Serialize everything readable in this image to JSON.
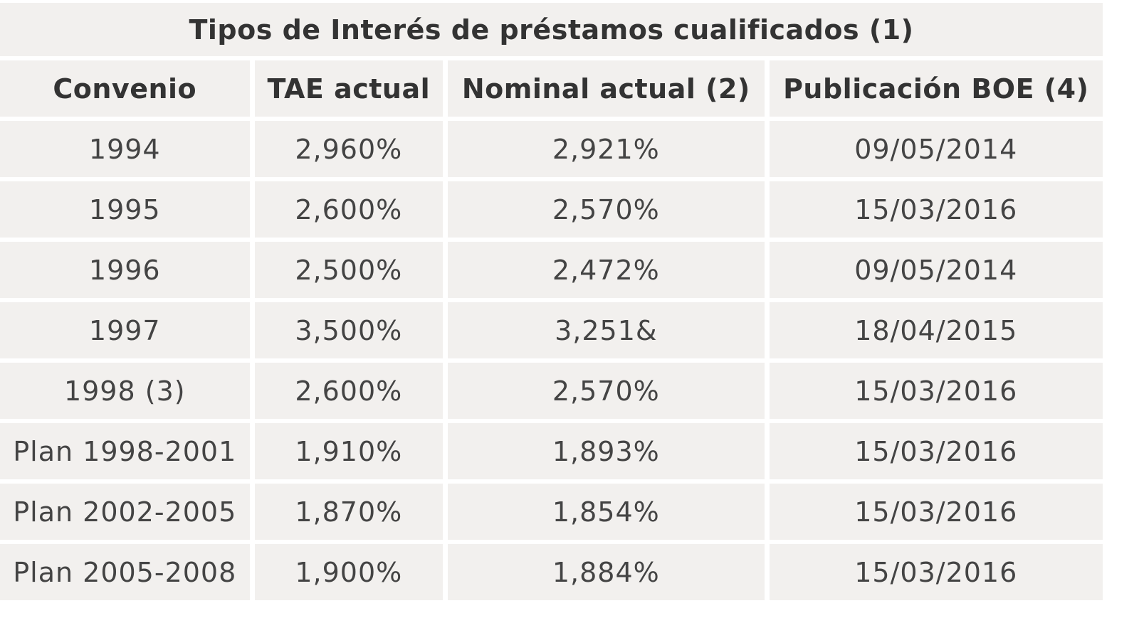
{
  "table": {
    "title": "Tipos de Interés de préstamos cualificados (1)",
    "headers": [
      "Convenio",
      "TAE actual",
      "Nominal actual (2)",
      "Publicación BOE (4)"
    ],
    "rows": [
      [
        "1994",
        "2,960%",
        "2,921%",
        "09/05/2014"
      ],
      [
        "1995",
        "2,600%",
        "2,570%",
        "15/03/2016"
      ],
      [
        "1996",
        "2,500%",
        "2,472%",
        "09/05/2014"
      ],
      [
        "1997",
        "3,500%",
        "3,251&",
        "18/04/2015"
      ],
      [
        "1998 (3)",
        "2,600%",
        "2,570%",
        "15/03/2016"
      ],
      [
        "Plan 1998-2001",
        "1,910%",
        "1,893%",
        "15/03/2016"
      ],
      [
        "Plan 2002-2005",
        "1,870%",
        "1,854%",
        "15/03/2016"
      ],
      [
        "Plan 2005-2008",
        "1,900%",
        "1,884%",
        "15/03/2016"
      ]
    ]
  },
  "colors": {
    "cell_background": "#f2f0ee",
    "grid_lines": "#ffffff",
    "text": "#3a3a3a"
  }
}
